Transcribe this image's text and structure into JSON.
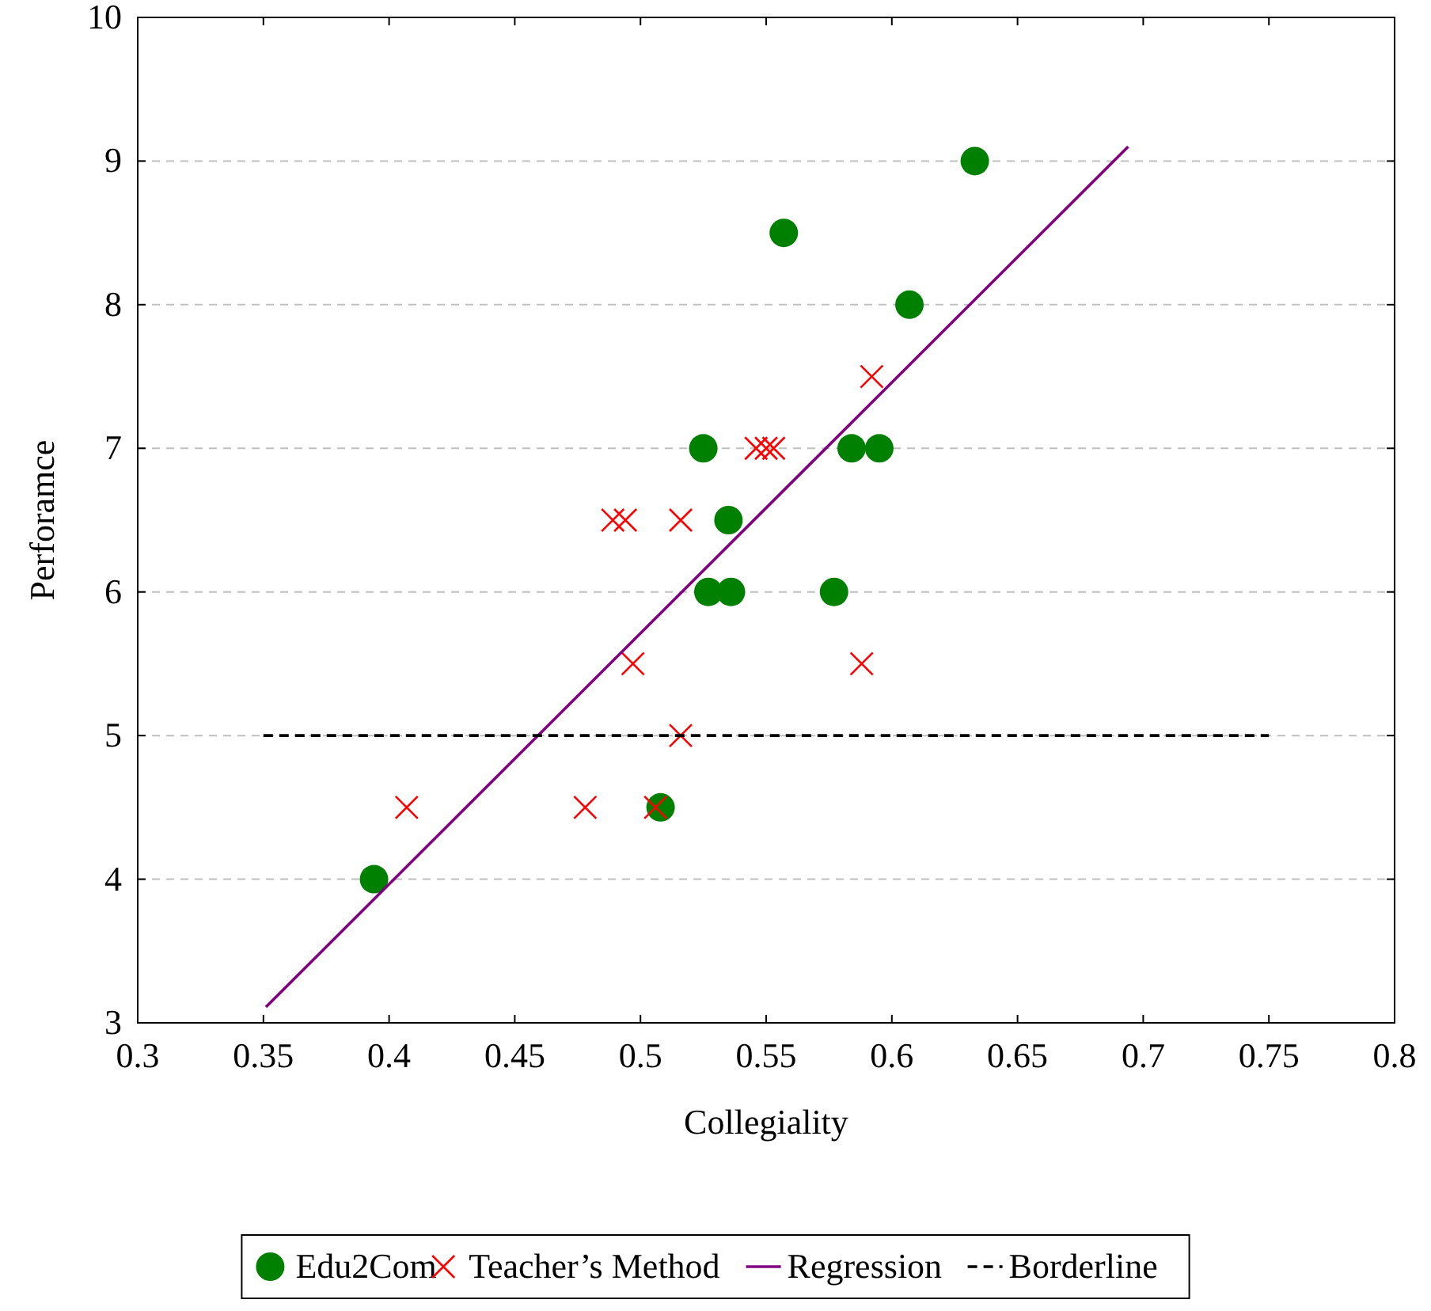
{
  "chart_data": {
    "type": "scatter",
    "xlabel": "Collegiality",
    "ylabel": "Perforamce",
    "xlim": [
      0.3,
      0.8
    ],
    "xticks": [
      0.3,
      0.35,
      0.4,
      0.45,
      0.5,
      0.55,
      0.6,
      0.65,
      0.7,
      0.75,
      0.8
    ],
    "ylim": [
      3,
      10
    ],
    "yticks": [
      3,
      4,
      5,
      6,
      7,
      8,
      9,
      10
    ],
    "grid": "y",
    "legend": "bottom",
    "series": [
      {
        "name": "Edu2Com",
        "marker": "circle",
        "color": "#008000",
        "x": [
          0.394,
          0.508,
          0.525,
          0.527,
          0.535,
          0.536,
          0.557,
          0.577,
          0.584,
          0.595,
          0.607,
          0.633
        ],
        "values": [
          4,
          4.5,
          7,
          6,
          6.5,
          6,
          8.5,
          6,
          7,
          7,
          8,
          9
        ]
      },
      {
        "name": "Teacher’s Method",
        "marker": "cross",
        "color": "#ff0000",
        "x": [
          0.407,
          0.478,
          0.489,
          0.494,
          0.497,
          0.506,
          0.516,
          0.516,
          0.546,
          0.55,
          0.553,
          0.588,
          0.592
        ],
        "values": [
          4.5,
          4.5,
          6.5,
          6.5,
          5.5,
          4.5,
          6.5,
          5,
          7,
          7,
          7,
          5.5,
          7.5
        ]
      },
      {
        "name": "Regression",
        "type": "line",
        "marker": "none",
        "line_style": "solid",
        "color": "#800080",
        "x": [
          0.351,
          0.694
        ],
        "values": [
          3.11,
          9.1
        ]
      },
      {
        "name": "Borderline",
        "type": "line",
        "marker": "none",
        "line_style": "dashed",
        "color": "#000000",
        "x": [
          0.35,
          0.75
        ],
        "values": [
          5,
          5
        ]
      }
    ]
  }
}
